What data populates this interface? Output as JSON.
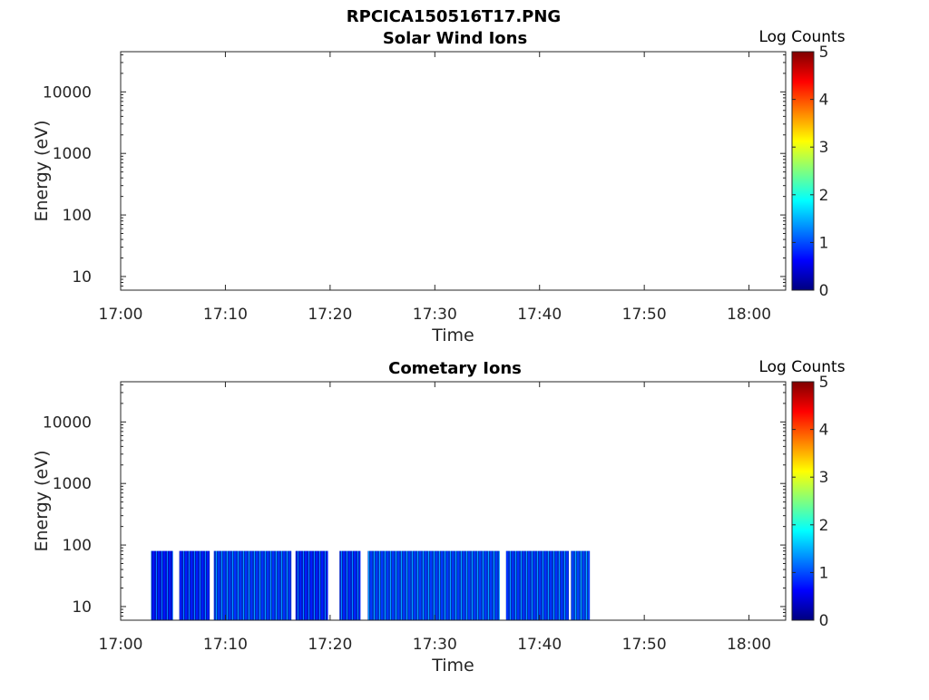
{
  "figure_title": "RPCICA150516T17.PNG",
  "colormap": [
    "#00007f",
    "#0000ff",
    "#007fff",
    "#00ffff",
    "#7fff7f",
    "#ffff00",
    "#ff7f00",
    "#ff0000",
    "#7f0000"
  ],
  "chart_data": [
    {
      "type": "heatmap",
      "title": "Solar Wind Ions",
      "xlabel": "Time",
      "ylabel": "Energy (eV)",
      "x_ticks": [
        "17:00",
        "17:10",
        "17:20",
        "17:30",
        "17:40",
        "17:50",
        "18:00"
      ],
      "x_tick_minutes": [
        0,
        10,
        20,
        30,
        40,
        50,
        60
      ],
      "xlim_minutes": [
        0,
        63.5
      ],
      "y_scale": "log",
      "y_ticks": [
        "10",
        "100",
        "1000",
        "10000"
      ],
      "y_tick_values": [
        10,
        100,
        1000,
        10000
      ],
      "ylim": [
        6,
        45000
      ],
      "colorbar": {
        "label": "Log Counts",
        "ticks": [
          "0",
          "1",
          "2",
          "3",
          "4",
          "5"
        ],
        "range": [
          0,
          5
        ]
      },
      "data_segments": []
    },
    {
      "type": "heatmap",
      "title": "Cometary Ions",
      "xlabel": "Time",
      "ylabel": "Energy (eV)",
      "x_ticks": [
        "17:00",
        "17:10",
        "17:20",
        "17:30",
        "17:40",
        "17:50",
        "18:00"
      ],
      "x_tick_minutes": [
        0,
        10,
        20,
        30,
        40,
        50,
        60
      ],
      "xlim_minutes": [
        0,
        63.5
      ],
      "y_scale": "log",
      "y_ticks": [
        "10",
        "100",
        "1000",
        "10000"
      ],
      "y_tick_values": [
        10,
        100,
        1000,
        10000
      ],
      "ylim": [
        6,
        45000
      ],
      "colorbar": {
        "label": "Log Counts",
        "ticks": [
          "0",
          "1",
          "2",
          "3",
          "4",
          "5"
        ],
        "range": [
          0,
          5
        ]
      },
      "data_segments": [
        {
          "start_min": 2.9,
          "end_min": 5.0,
          "energy_min_ev": 6,
          "energy_max_ev": 80,
          "level": 0.9
        },
        {
          "start_min": 5.6,
          "end_min": 8.5,
          "energy_min_ev": 6,
          "energy_max_ev": 80,
          "level": 1.0
        },
        {
          "start_min": 8.9,
          "end_min": 16.3,
          "energy_min_ev": 6,
          "energy_max_ev": 80,
          "level": 1.3
        },
        {
          "start_min": 16.7,
          "end_min": 19.8,
          "energy_min_ev": 6,
          "energy_max_ev": 80,
          "level": 1.0
        },
        {
          "start_min": 20.9,
          "end_min": 22.9,
          "energy_min_ev": 6,
          "energy_max_ev": 80,
          "level": 1.1
        },
        {
          "start_min": 23.6,
          "end_min": 36.2,
          "energy_min_ev": 6,
          "energy_max_ev": 80,
          "level": 1.4
        },
        {
          "start_min": 36.8,
          "end_min": 42.8,
          "energy_min_ev": 6,
          "energy_max_ev": 80,
          "level": 1.3
        },
        {
          "start_min": 43.0,
          "end_min": 44.8,
          "energy_min_ev": 6,
          "energy_max_ev": 80,
          "level": 1.5
        }
      ]
    }
  ]
}
